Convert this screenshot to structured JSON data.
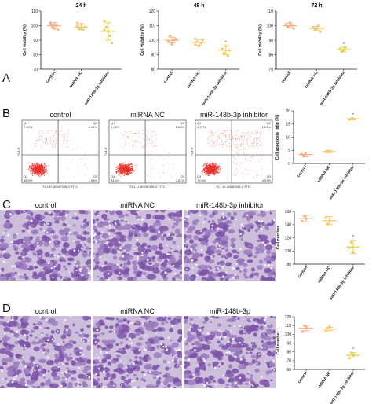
{
  "panels": {
    "a": "A",
    "b": "B",
    "c": "C",
    "d": "D"
  },
  "colors": {
    "control": "#f4b183",
    "nc": "#f6c667",
    "inh": "#e8cf4a",
    "axis": "#222222",
    "stain": "#7d52a8"
  },
  "groups_b": [
    "control",
    "miRNA NC",
    "miR-148b-3p inhibitor"
  ],
  "groups_c": [
    "control",
    "miRNA NC",
    "miR-148b-3p inhibitor"
  ],
  "groups_d": [
    "control",
    "miRNA NC",
    "miR-148b-3p"
  ],
  "flow": {
    "ylabel": "FL3-H",
    "xlabel": "FL1-H: ANNEXIN-V FITC",
    "plots": [
      {
        "q1": "Q1",
        "q1v": "7.60%",
        "q2": "Q2",
        "q2v": "2.14%",
        "q3": "Q3",
        "q3v": "1.05%",
        "q4": "Q4",
        "q4v": "85.5%"
      },
      {
        "q1": "Q1",
        "q1v": "1.38%",
        "q2": "Q2",
        "q2v": "1.62%",
        "q3": "Q3",
        "q3v": "2.81%",
        "q4": "Q4",
        "q4v": "84.4%"
      },
      {
        "q1": "Q1",
        "q1v": "4.37%",
        "q2": "Q2",
        "q2v": "12.3%",
        "q3": "Q3",
        "q3v": "4.67%",
        "q4": "Q4",
        "q4v": "78.9%"
      }
    ]
  },
  "chart_data": [
    {
      "type": "scatter",
      "title": "24 h",
      "ylabel": "Cell viability (%)",
      "categories": [
        "control",
        "miRNA NC",
        "miR-148b-3p inhibitor"
      ],
      "ylim": [
        70,
        110
      ],
      "yticks": [
        70,
        80,
        90,
        100,
        110
      ],
      "points": [
        [
          101,
          99,
          98,
          100,
          97,
          102,
          100
        ],
        [
          100,
          98,
          101,
          97,
          99,
          102
        ],
        [
          103,
          99,
          96,
          93,
          88,
          97
        ]
      ],
      "mean": [
        100,
        99,
        96
      ],
      "err": [
        2,
        2,
        6
      ],
      "sig": [
        "",
        "",
        ""
      ]
    },
    {
      "type": "scatter",
      "title": "48 h",
      "ylabel": "Cell viability (%)",
      "categories": [
        "control",
        "miRNA NC",
        "miR-148b-3p inhibitor"
      ],
      "ylim": [
        80,
        120
      ],
      "yticks": [
        80,
        90,
        100,
        110,
        120
      ],
      "points": [
        [
          99,
          103,
          97,
          100,
          101
        ],
        [
          101,
          99,
          96,
          98,
          100,
          97
        ],
        [
          94,
          91,
          96,
          89,
          93
        ]
      ],
      "mean": [
        100,
        98.5,
        93
      ],
      "err": [
        2,
        2,
        3
      ],
      "sig": [
        "",
        "",
        "*"
      ]
    },
    {
      "type": "scatter",
      "title": "72 h",
      "ylabel": "Cell viability (%)",
      "categories": [
        "control",
        "miRNA NC",
        "miR-148b-3p inhibitor"
      ],
      "ylim": [
        70,
        110
      ],
      "yticks": [
        70,
        80,
        90,
        100,
        110
      ],
      "points": [
        [
          101,
          99,
          102,
          100,
          98
        ],
        [
          99,
          97,
          98,
          100,
          96
        ],
        [
          84,
          82,
          83,
          85
        ]
      ],
      "mean": [
        100,
        98,
        83.5
      ],
      "err": [
        1.5,
        1.5,
        1.5
      ],
      "sig": [
        "",
        "",
        "*"
      ]
    },
    {
      "type": "scatter",
      "title": "",
      "ylabel": "Cell apoptosis ratio (%)",
      "categories": [
        "control",
        "miRNA NC",
        "miR-148b-3p inhibitor"
      ],
      "ylim": [
        0,
        20
      ],
      "yticks": [
        0,
        5,
        10,
        15,
        20
      ],
      "points": [
        [
          3.5,
          2.8,
          3.9
        ],
        [
          4.4,
          4.7,
          4.5
        ],
        [
          16.7,
          16.9,
          17
        ]
      ],
      "mean": [
        3.4,
        4.5,
        16.9
      ],
      "err": [
        0.9,
        0.4,
        0.3
      ],
      "sig": [
        "",
        "",
        "*"
      ]
    },
    {
      "type": "scatter",
      "title": "",
      "ylabel": "Cell number",
      "categories": [
        "control",
        "miRNA NC",
        "miR-148b-3p inhibitor"
      ],
      "ylim": [
        80,
        160
      ],
      "yticks": [
        80,
        100,
        120,
        140,
        160
      ],
      "points": [
        [
          145,
          153,
          149
        ],
        [
          151,
          141,
          146
        ],
        [
          105,
          113,
          98
        ]
      ],
      "mean": [
        149,
        146,
        106
      ],
      "err": [
        5,
        6,
        10
      ],
      "sig": [
        "",
        "",
        "*"
      ]
    },
    {
      "type": "scatter",
      "title": "",
      "ylabel": "Cell number",
      "categories": [
        "control",
        "miRNA NC",
        "miR-148b-3p inhibitor"
      ],
      "ylim": [
        60,
        120
      ],
      "yticks": [
        60,
        70,
        80,
        90,
        100,
        110,
        120
      ],
      "points": [
        [
          103,
          110,
          108
        ],
        [
          104,
          107,
          109
        ],
        [
          73,
          79,
          76
        ]
      ],
      "mean": [
        107,
        106,
        76
      ],
      "err": [
        3,
        2,
        3
      ],
      "sig": [
        "",
        "",
        "*"
      ]
    }
  ]
}
